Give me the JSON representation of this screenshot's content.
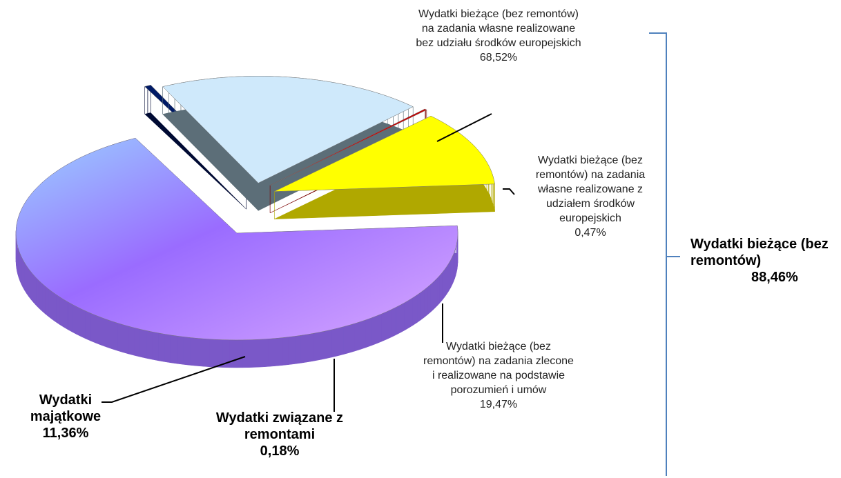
{
  "chart_data": {
    "type": "pie",
    "categories": [
      "Wydatki bieżące (bez remontów) na zadania własne realizowane bez udziału środków europejskich",
      "Wydatki bieżące (bez remontów) na zadania własne realizowane z udziałem środków europejskich",
      "Wydatki bieżące (bez remontów) na zadania zlecone i realizowane na podstawie porozumień i umów",
      "Wydatki związane z remontami",
      "Wydatki majątkowe"
    ],
    "values": [
      68.52,
      0.47,
      19.47,
      0.18,
      11.36
    ],
    "value_labels": [
      "68,52%",
      "0,47%",
      "19,47%",
      "0,18%",
      "11,36%"
    ],
    "colors": [
      "#a07cf8",
      "#001a66",
      "#cfe9fb",
      "#cc0000",
      "#ffff00"
    ],
    "group": {
      "text": "Wydatki bieżące (bez remontów)",
      "value": 88.46,
      "label": "88,46%"
    }
  }
}
